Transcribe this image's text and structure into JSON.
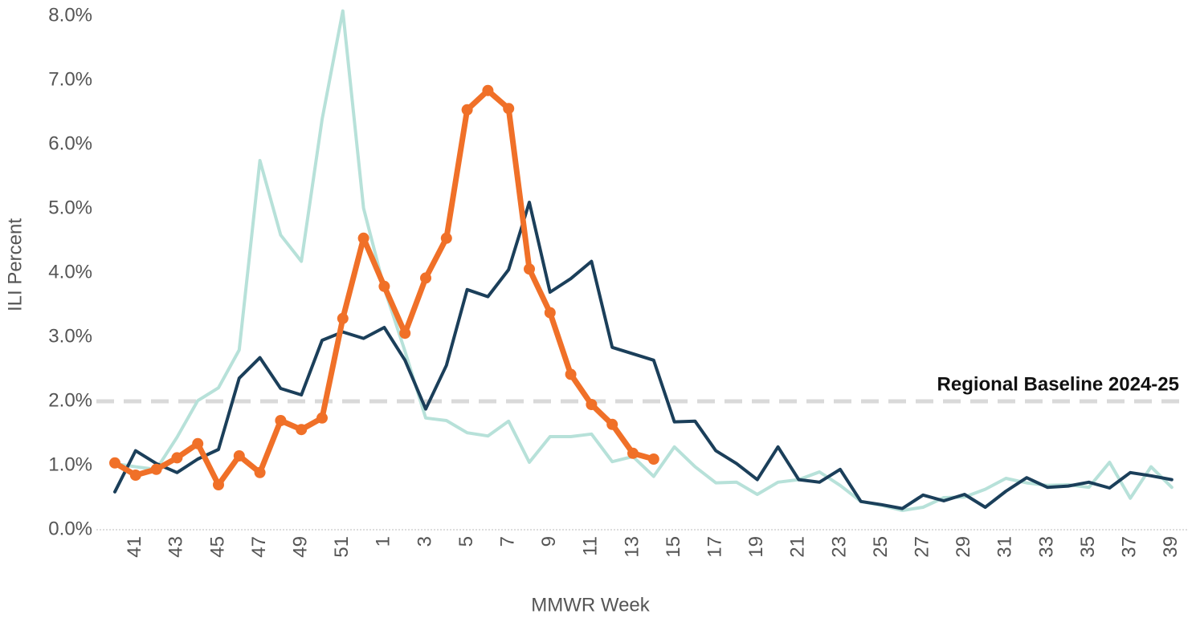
{
  "chart_data": {
    "type": "line",
    "y_label": "ILI Percent",
    "x_label": "MMWR Week",
    "categories": [
      null,
      "41",
      null,
      "43",
      null,
      "45",
      null,
      "47",
      null,
      "49",
      null,
      "51",
      null,
      "1",
      null,
      "3",
      null,
      "5",
      null,
      "7",
      null,
      "9",
      null,
      "11",
      null,
      "13",
      null,
      "15",
      null,
      "17",
      null,
      "19",
      null,
      "21",
      null,
      "23",
      null,
      "25",
      null,
      "27",
      null,
      "29",
      null,
      "31",
      null,
      "33",
      null,
      "35",
      null,
      "37",
      null,
      "39"
    ],
    "series": [
      {
        "color": "#b7e1d9",
        "marker": false,
        "values": [
          1.03,
          0.98,
          0.94,
          1.44,
          2.01,
          2.21,
          2.8,
          5.75,
          4.59,
          4.18,
          6.39,
          8.08,
          5.01,
          3.76,
          2.78,
          1.74,
          1.7,
          1.51,
          1.46,
          1.69,
          1.05,
          1.45,
          1.45,
          1.49,
          1.06,
          1.14,
          0.83,
          1.29,
          0.98,
          0.73,
          0.74,
          0.55,
          0.74,
          0.78,
          0.9,
          0.69,
          0.44,
          0.38,
          0.3,
          0.35,
          0.5,
          0.51,
          0.63,
          0.8,
          0.73,
          0.69,
          0.7,
          0.66,
          1.05,
          0.49,
          0.98,
          0.66
        ]
      },
      {
        "color": "#1b3f5a",
        "marker": false,
        "values": [
          0.59,
          1.23,
          1.03,
          0.89,
          1.1,
          1.25,
          2.36,
          2.68,
          2.2,
          2.1,
          2.95,
          3.08,
          2.98,
          3.15,
          2.64,
          1.88,
          2.56,
          3.74,
          3.63,
          4.05,
          5.1,
          3.7,
          3.91,
          4.18,
          2.84,
          2.74,
          2.64,
          1.68,
          1.69,
          1.23,
          1.03,
          0.78,
          1.29,
          0.78,
          0.74,
          0.94,
          0.44,
          0.39,
          0.33,
          0.54,
          0.45,
          0.55,
          0.35,
          0.6,
          0.81,
          0.66,
          0.68,
          0.74,
          0.65,
          0.89,
          0.84,
          0.78
        ]
      },
      {
        "color": "#f07028",
        "marker": true,
        "values": [
          1.04,
          0.85,
          0.94,
          1.12,
          1.34,
          0.7,
          1.15,
          0.89,
          1.7,
          1.56,
          1.74,
          3.29,
          4.54,
          3.79,
          3.06,
          3.92,
          4.54,
          6.54,
          6.84,
          6.56,
          4.06,
          3.38,
          2.42,
          1.95,
          1.64,
          1.19,
          1.1,
          null,
          null,
          null,
          null,
          null,
          null,
          null,
          null,
          null,
          null,
          null,
          null,
          null,
          null,
          null,
          null,
          null,
          null,
          null,
          null,
          null,
          null,
          null,
          null,
          null
        ]
      }
    ],
    "ylim": [
      0,
      8
    ],
    "yticks": [
      {
        "value": 0,
        "label": "0.0%"
      },
      {
        "value": 1,
        "label": "1.0%"
      },
      {
        "value": 2,
        "label": "2.0%"
      },
      {
        "value": 3,
        "label": "3.0%"
      },
      {
        "value": 4,
        "label": "4.0%"
      },
      {
        "value": 5,
        "label": "5.0%"
      },
      {
        "value": 6,
        "label": "6.0%"
      },
      {
        "value": 7,
        "label": "7.0%"
      },
      {
        "value": 8,
        "label": "8.0%"
      }
    ],
    "reference_line": {
      "value": 2,
      "label": "Regional Baseline 2024-25",
      "color": "#d9d9d9"
    }
  }
}
